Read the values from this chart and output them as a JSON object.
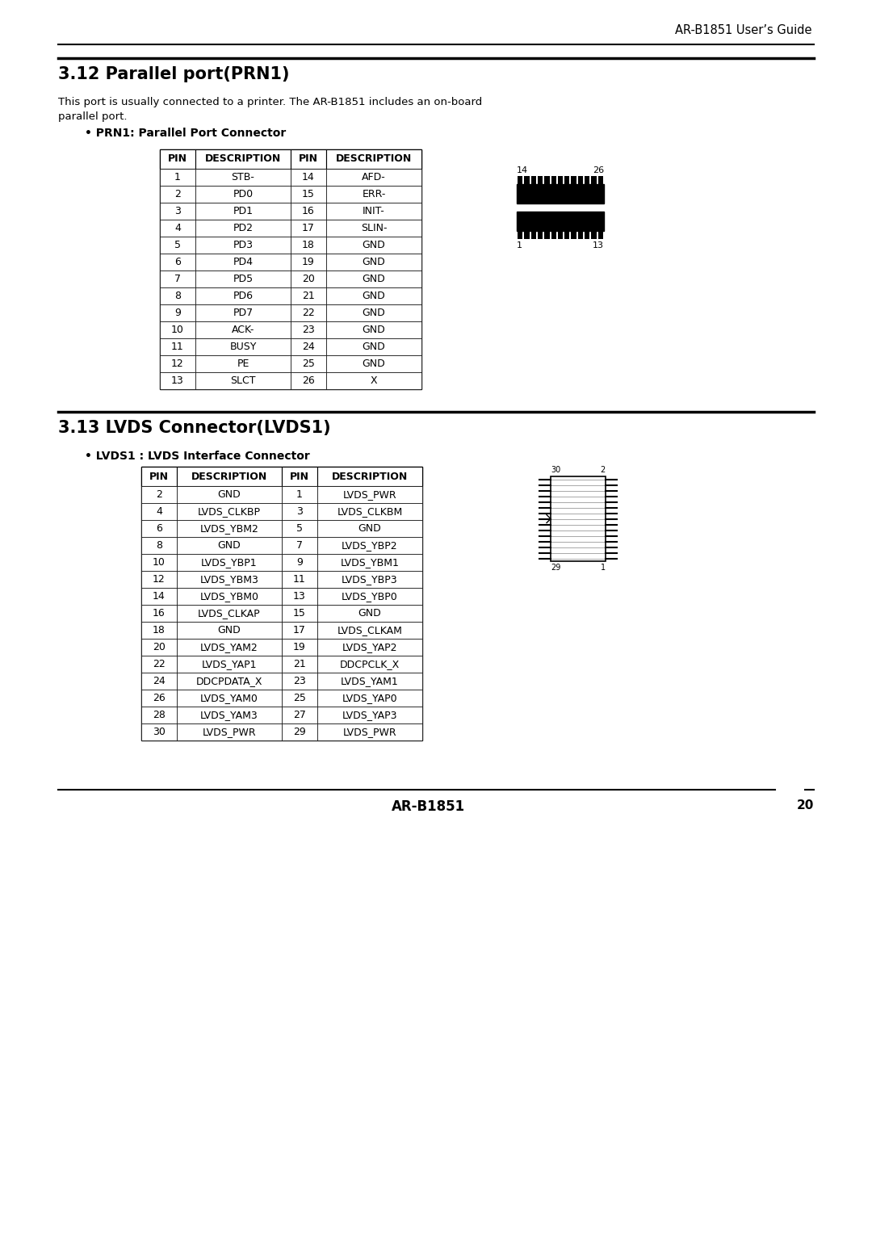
{
  "header_text": "AR-B1851 User’s Guide",
  "section1_title": "3.12 Parallel port(PRN1)",
  "section1_body_line1": "This port is usually connected to a printer. The AR-B1851 includes an on-board",
  "section1_body_line2": "parallel port.",
  "section1_bullet": "• PRN1: Parallel Port Connector",
  "prn1_table": {
    "headers": [
      "PIN",
      "DESCRIPTION",
      "PIN",
      "DESCRIPTION"
    ],
    "rows": [
      [
        "1",
        "STB-",
        "14",
        "AFD-"
      ],
      [
        "2",
        "PD0",
        "15",
        "ERR-"
      ],
      [
        "3",
        "PD1",
        "16",
        "INIT-"
      ],
      [
        "4",
        "PD2",
        "17",
        "SLIN-"
      ],
      [
        "5",
        "PD3",
        "18",
        "GND"
      ],
      [
        "6",
        "PD4",
        "19",
        "GND"
      ],
      [
        "7",
        "PD5",
        "20",
        "GND"
      ],
      [
        "8",
        "PD6",
        "21",
        "GND"
      ],
      [
        "9",
        "PD7",
        "22",
        "GND"
      ],
      [
        "10",
        "ACK-",
        "23",
        "GND"
      ],
      [
        "11",
        "BUSY",
        "24",
        "GND"
      ],
      [
        "12",
        "PE",
        "25",
        "GND"
      ],
      [
        "13",
        "SLCT",
        "26",
        "X"
      ]
    ]
  },
  "section2_title": "3.13 LVDS Connector(LVDS1)",
  "section2_bullet": "• LVDS1 : LVDS Interface Connector",
  "lvds_table": {
    "headers": [
      "PIN",
      "DESCRIPTION",
      "PIN",
      "DESCRIPTION"
    ],
    "rows": [
      [
        "2",
        "GND",
        "1",
        "LVDS_PWR"
      ],
      [
        "4",
        "LVDS_CLKBP",
        "3",
        "LVDS_CLKBM"
      ],
      [
        "6",
        "LVDS_YBM2",
        "5",
        "GND"
      ],
      [
        "8",
        "GND",
        "7",
        "LVDS_YBP2"
      ],
      [
        "10",
        "LVDS_YBP1",
        "9",
        "LVDS_YBM1"
      ],
      [
        "12",
        "LVDS_YBM3",
        "11",
        "LVDS_YBP3"
      ],
      [
        "14",
        "LVDS_YBM0",
        "13",
        "LVDS_YBP0"
      ],
      [
        "16",
        "LVDS_CLKAP",
        "15",
        "GND"
      ],
      [
        "18",
        "GND",
        "17",
        "LVDS_CLKAM"
      ],
      [
        "20",
        "LVDS_YAM2",
        "19",
        "LVDS_YAP2"
      ],
      [
        "22",
        "LVDS_YAP1",
        "21",
        "DDCPCLK_X"
      ],
      [
        "24",
        "DDCPDATA_X",
        "23",
        "LVDS_YAM1"
      ],
      [
        "26",
        "LVDS_YAM0",
        "25",
        "LVDS_YAP0"
      ],
      [
        "28",
        "LVDS_YAM3",
        "27",
        "LVDS_YAP3"
      ],
      [
        "30",
        "LVDS_PWR",
        "29",
        "LVDS_PWR"
      ]
    ]
  },
  "footer_text": "AR-B1851",
  "footer_page": "20",
  "bg_color": "#ffffff"
}
